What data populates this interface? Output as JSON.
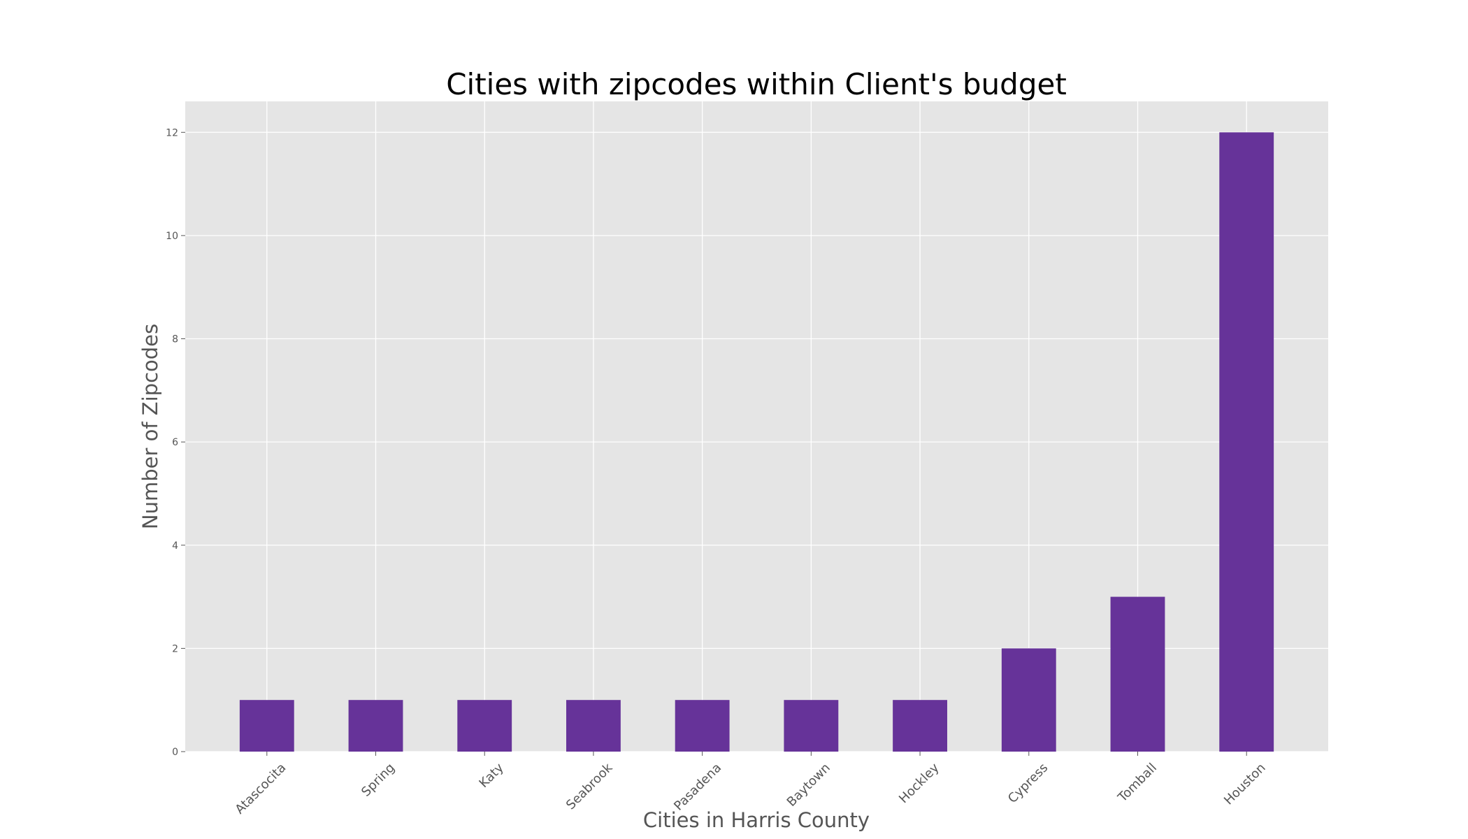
{
  "chart_data": {
    "type": "bar",
    "title": "Cities with zipcodes within Client's budget",
    "xlabel": "Cities in Harris County",
    "ylabel": "Number of Zipcodes",
    "categories": [
      "Atascocita",
      "Spring",
      "Katy",
      "Seabrook",
      "Pasadena",
      "Baytown",
      "Hockley",
      "Cypress",
      "Tomball",
      "Houston"
    ],
    "values": [
      1,
      1,
      1,
      1,
      1,
      1,
      1,
      2,
      3,
      12
    ],
    "ylim": [
      0,
      12.6
    ],
    "yticks": [
      0,
      2,
      4,
      6,
      8,
      10,
      12
    ],
    "grid": true,
    "colors": {
      "bar": "#663399",
      "background": "#e5e5e5",
      "grid": "#ffffff"
    }
  }
}
